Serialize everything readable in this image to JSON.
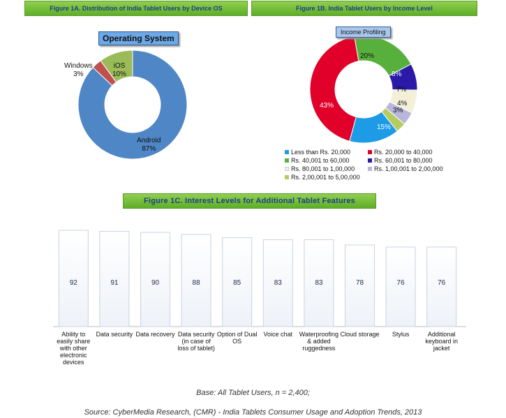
{
  "headers": {
    "fig1a": "Figure 1A. Distribution of India Tablet Users by Device OS",
    "fig1b": "Figure 1B. India Tablet Users by Income Level",
    "fig1c": "Figure 1C. Interest Levels for Additional Tablet Features"
  },
  "chart_data": [
    {
      "type": "pie",
      "title": "Operating System",
      "categories": [
        "Android",
        "Windows",
        "iOS"
      ],
      "values": [
        87,
        3,
        10
      ],
      "labels": [
        "87%",
        "3%",
        "10%"
      ],
      "colors": [
        "#4f86c6",
        "#c0504d",
        "#9bbb59"
      ]
    },
    {
      "type": "pie",
      "title": "Income Profiling",
      "categories": [
        "Less than Rs. 20,000",
        "Rs. 20,000 to 40,000",
        "Rs. 40,001 to 60,000",
        "Rs. 60,001 to 80,000",
        "Rs. 80,001 to 1,00,000",
        "Rs. 1,00,001 to 2,00,000",
        "Rs. 2,00,001 to 5,00,000"
      ],
      "values": [
        15,
        43,
        20,
        8,
        7,
        4,
        3
      ],
      "labels": [
        "15%",
        "43%",
        "20%",
        "8%",
        "7%",
        "4%",
        "3%"
      ],
      "colors": [
        "#1e9be6",
        "#e0002a",
        "#58b03c",
        "#2a1aa8",
        "#f4f0d8",
        "#b9b6dc",
        "#b5cc5e"
      ]
    },
    {
      "type": "bar",
      "title": "",
      "categories": [
        "Ability to easily share with other electronic devices",
        "Data security",
        "Data recovery",
        "Data security (in case of loss of tablet)",
        "Option of Dual OS",
        "Voice chat",
        "Waterproofing & added ruggedness",
        "Cloud storage",
        "Stylus",
        "Additional keyboard in jacket"
      ],
      "values": [
        92,
        91,
        90,
        88,
        85,
        83,
        83,
        78,
        76,
        76
      ],
      "ylim": [
        0,
        100
      ]
    }
  ],
  "bar_label_lines": [
    [
      "Ability to",
      "easily share",
      "with other",
      "electronic",
      "devices"
    ],
    [
      "Data security"
    ],
    [
      "Data recovery"
    ],
    [
      "Data security",
      "(in case of",
      "loss of tablet)"
    ],
    [
      "Option of Dual",
      "OS"
    ],
    [
      "Voice chat"
    ],
    [
      "Waterproofing",
      "& added",
      "ruggedness"
    ],
    [
      "Cloud storage"
    ],
    [
      "Stylus"
    ],
    [
      "Additional",
      "keyboard in",
      "jacket"
    ]
  ],
  "os_slice_labels": {
    "android_name": "Android",
    "android_pct": "87%",
    "windows_name": "Windows",
    "windows_pct": "3%",
    "ios_name": "iOS",
    "ios_pct": "10%"
  },
  "footer": {
    "base": "Base: All Tablet Users, n = 2,400;",
    "source": "Source: CyberMedia Research, (CMR) -  India Tablets Consumer Usage and Adoption Trends, 2013"
  }
}
